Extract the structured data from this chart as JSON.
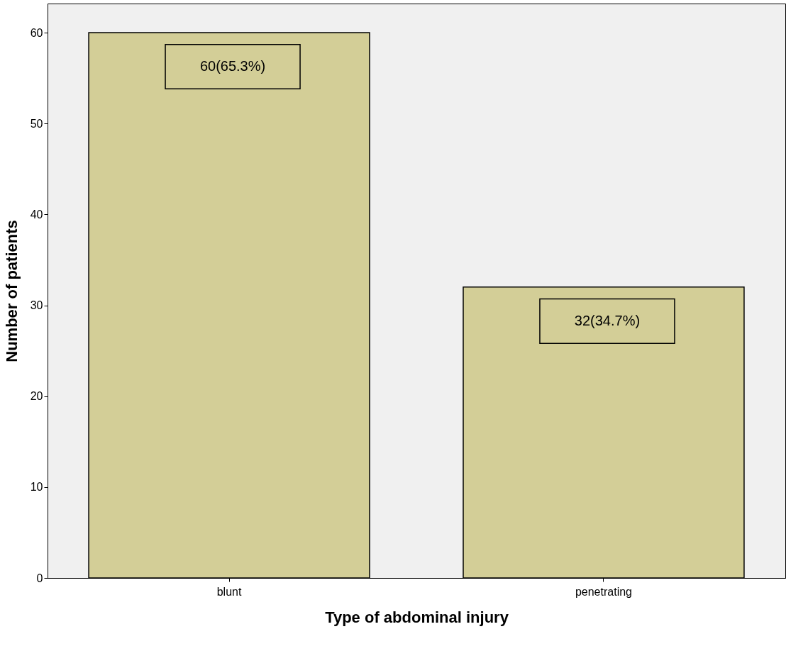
{
  "chart_data": {
    "type": "bar",
    "xlabel": "Type of abdominal injury",
    "ylabel": "Number of patients",
    "categories": [
      "blunt",
      "penetrating"
    ],
    "values": [
      60,
      32
    ],
    "color": "#d3ce97",
    "value_labels": [
      "60(65.3%)",
      "32(34.7%)"
    ],
    "ylim": [
      0,
      63.2
    ],
    "yticks": [
      0,
      10,
      20,
      30,
      40,
      50,
      60
    ],
    "grid": false
  }
}
